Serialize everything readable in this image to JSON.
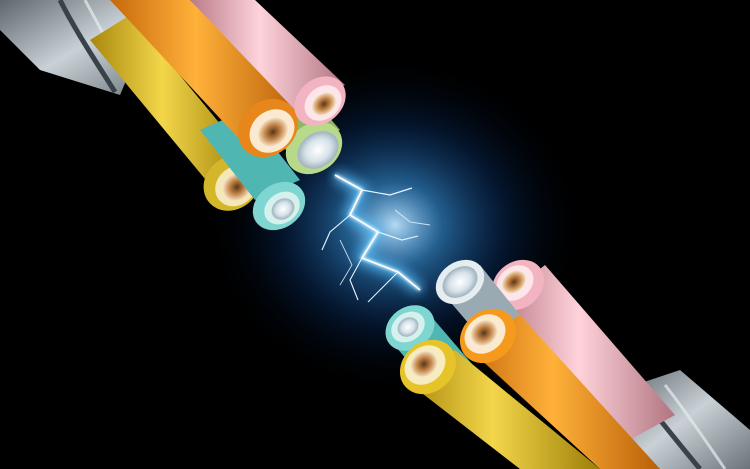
{
  "image": {
    "subject": "severed-power-cable-with-electric-spark",
    "colors": {
      "background": "#000000",
      "glow": "#3fa9ff",
      "spark": "#e8f6ff",
      "orange_insulation": "#f59a1c",
      "yellow_insulation": "#e6c329",
      "pink_insulation": "#f4b7c2",
      "cyan_insulation": "#7fd6d0",
      "green_insulation": "#b9d98a",
      "sheath": "#b9c2c8",
      "copper_core": "#d9a46a"
    }
  }
}
